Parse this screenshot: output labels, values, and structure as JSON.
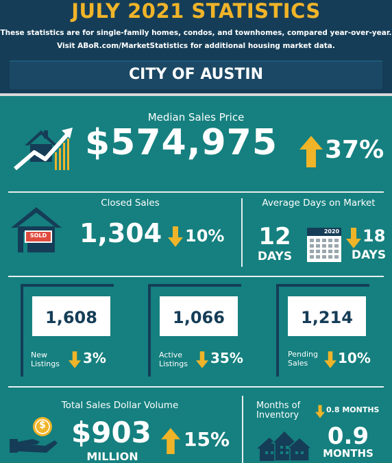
{
  "header": {
    "title": "JULY 2021 STATISTICS",
    "subtitle_line1": "These statistics are for single-family homes, condos, and townhomes, compared year-over-year.",
    "subtitle_line2": "Visit ABoR.com/MarketStatistics for additional housing market data.",
    "city": "CITY OF AUSTIN"
  },
  "median": {
    "label": "Median Sales Price",
    "value": "$574,975",
    "change": "37%",
    "direction": "up"
  },
  "closed": {
    "label": "Closed Sales",
    "value": "1,304",
    "change": "10%",
    "direction": "down",
    "sign_text": "SOLD"
  },
  "days": {
    "label": "Average Days on Market",
    "value": "12",
    "unit": "DAYS",
    "calendar_year": "2020",
    "change": "18",
    "change_unit": "DAYS",
    "direction": "down"
  },
  "listings": [
    {
      "value": "1,608",
      "label_line1": "New",
      "label_line2": "Listings",
      "change": "3%",
      "direction": "down"
    },
    {
      "value": "1,066",
      "label_line1": "Active",
      "label_line2": "Listings",
      "change": "35%",
      "direction": "down"
    },
    {
      "value": "1,214",
      "label_line1": "Pending",
      "label_line2": "Sales",
      "change": "10%",
      "direction": "down"
    }
  ],
  "volume": {
    "label": "Total Sales Dollar Volume",
    "value": "$903",
    "unit": "MILLION",
    "change": "15%",
    "direction": "up",
    "coin_symbol": "$"
  },
  "inventory": {
    "label_line1": "Months of",
    "label_line2": "Inventory",
    "change": "0.8 MONTHS",
    "direction": "down",
    "value": "0.9",
    "unit": "MONTHS"
  },
  "colors": {
    "teal": "#15807f",
    "navy": "#153d57",
    "gold": "#f0b429",
    "white": "#ffffff"
  }
}
